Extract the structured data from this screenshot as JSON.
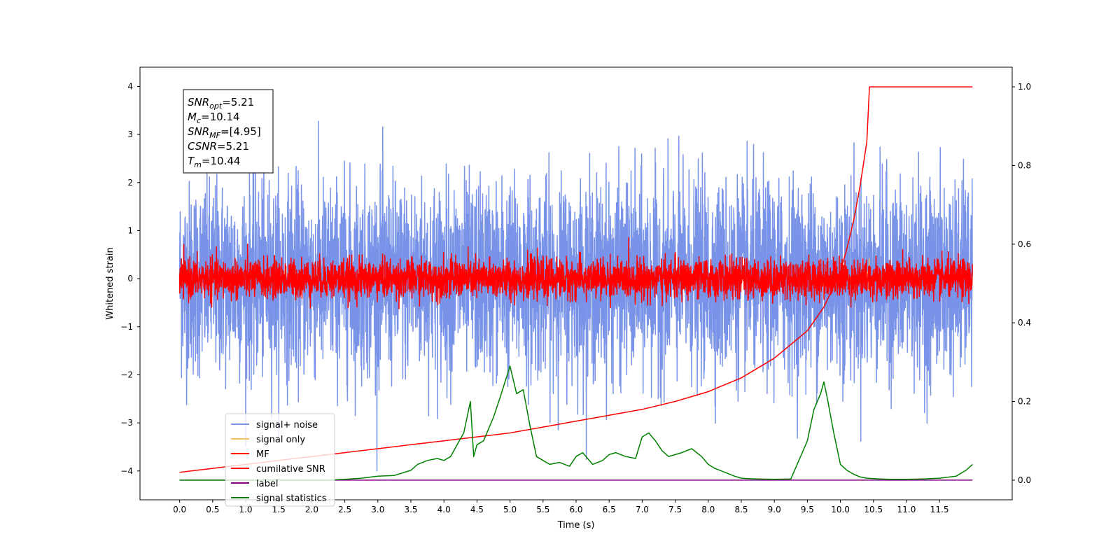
{
  "chart_data": {
    "type": "line",
    "xlabel": "Time (s)",
    "ylabel": "Whitened strain",
    "xlim": [
      -0.6,
      12.6
    ],
    "ylim": [
      -4.6,
      4.4
    ],
    "ylim_right": [
      -0.05,
      1.05
    ],
    "x_ticks": [
      "0.0",
      "0.5",
      "1.0",
      "1.5",
      "2.0",
      "2.5",
      "3.0",
      "3.5",
      "4.0",
      "4.5",
      "5.0",
      "5.5",
      "6.0",
      "6.5",
      "7.0",
      "7.5",
      "8.0",
      "8.5",
      "9.0",
      "9.5",
      "10.0",
      "10.5",
      "11.0",
      "11.5"
    ],
    "y_ticks": [
      "4",
      "3",
      "2",
      "1",
      "0",
      "−1",
      "−2",
      "−3",
      "−4"
    ],
    "y_ticks_right": [
      "1.0",
      "0.8",
      "0.6",
      "0.4",
      "0.2",
      "0.0"
    ],
    "info_box": [
      {
        "main": "SNR",
        "sub": "opt",
        "rest": "=5.21"
      },
      {
        "main": "M",
        "sub": "c",
        "rest": "=10.14"
      },
      {
        "main": "SNR",
        "sub": "MF",
        "rest": "=[4.95]"
      },
      {
        "main": "CSNR",
        "sub": "",
        "rest": "=5.21"
      },
      {
        "main": "T",
        "sub": "m",
        "rest": "=10.44"
      }
    ],
    "legend_placement": "lower-left",
    "series": [
      {
        "name": "signal+ noise",
        "color": "#7893e7",
        "axis": "left",
        "kind": "noise",
        "t_start": 0.0,
        "t_end": 12.0,
        "sigma": 1.0
      },
      {
        "name": "signal only",
        "color": "#f5c063",
        "axis": "left",
        "kind": "chirp",
        "t_end": 10.44,
        "peak": 0.92
      },
      {
        "name": "MF",
        "color": "#ff0000",
        "axis": "left",
        "kind": "noise",
        "t_start": 0.0,
        "t_end": 12.0,
        "sigma": 0.2
      },
      {
        "name": "cumilative SNR",
        "color": "#ff0000",
        "axis": "right",
        "x": [
          0.0,
          0.5,
          1.0,
          1.5,
          2.0,
          2.5,
          3.0,
          3.5,
          4.0,
          4.5,
          5.0,
          5.5,
          6.0,
          6.5,
          7.0,
          7.5,
          8.0,
          8.5,
          9.0,
          9.5,
          9.75,
          10.0,
          10.1,
          10.2,
          10.3,
          10.4,
          10.44,
          10.5,
          11.0,
          11.5,
          12.0
        ],
        "y": [
          0.02,
          0.03,
          0.04,
          0.05,
          0.06,
          0.07,
          0.08,
          0.09,
          0.1,
          0.11,
          0.12,
          0.135,
          0.15,
          0.165,
          0.18,
          0.2,
          0.225,
          0.26,
          0.31,
          0.38,
          0.44,
          0.53,
          0.59,
          0.66,
          0.75,
          0.86,
          1.0,
          1.0,
          1.0,
          1.0,
          1.0
        ]
      },
      {
        "name": "label",
        "color": "#800080",
        "axis": "right",
        "x": [
          0.0,
          12.0
        ],
        "y": [
          0.0,
          0.0
        ]
      },
      {
        "name": "signal statistics",
        "color": "#008000",
        "axis": "right",
        "x": [
          0.0,
          0.25,
          0.5,
          0.75,
          1.0,
          1.25,
          1.5,
          1.75,
          2.0,
          2.25,
          2.5,
          2.75,
          3.0,
          3.25,
          3.5,
          3.6,
          3.75,
          3.9,
          4.0,
          4.1,
          4.2,
          4.3,
          4.4,
          4.45,
          4.5,
          4.6,
          4.75,
          4.85,
          5.0,
          5.1,
          5.2,
          5.3,
          5.4,
          5.5,
          5.6,
          5.75,
          5.9,
          6.0,
          6.1,
          6.25,
          6.4,
          6.5,
          6.6,
          6.75,
          6.9,
          7.0,
          7.1,
          7.2,
          7.3,
          7.4,
          7.5,
          7.6,
          7.75,
          7.9,
          8.0,
          8.1,
          8.25,
          8.4,
          8.5,
          8.6,
          8.75,
          9.0,
          9.25,
          9.5,
          9.6,
          9.7,
          9.75,
          9.8,
          9.9,
          10.0,
          10.1,
          10.2,
          10.3,
          10.4,
          10.5,
          10.6,
          10.75,
          11.0,
          11.25,
          11.5,
          11.75,
          11.9,
          12.0
        ],
        "y": [
          0.0,
          0.0,
          0.0,
          0.0,
          0.0,
          0.0,
          0.0,
          0.0,
          0.0,
          0.0,
          0.002,
          0.005,
          0.01,
          0.012,
          0.025,
          0.04,
          0.05,
          0.055,
          0.05,
          0.06,
          0.09,
          0.12,
          0.2,
          0.06,
          0.09,
          0.1,
          0.16,
          0.21,
          0.29,
          0.22,
          0.23,
          0.14,
          0.06,
          0.05,
          0.04,
          0.045,
          0.035,
          0.06,
          0.07,
          0.04,
          0.05,
          0.065,
          0.07,
          0.06,
          0.055,
          0.11,
          0.12,
          0.1,
          0.075,
          0.06,
          0.065,
          0.07,
          0.08,
          0.06,
          0.04,
          0.03,
          0.02,
          0.01,
          0.005,
          0.004,
          0.003,
          0.002,
          0.003,
          0.1,
          0.18,
          0.22,
          0.25,
          0.21,
          0.12,
          0.04,
          0.025,
          0.015,
          0.008,
          0.005,
          0.004,
          0.003,
          0.002,
          0.002,
          0.003,
          0.005,
          0.01,
          0.025,
          0.04
        ]
      }
    ]
  }
}
